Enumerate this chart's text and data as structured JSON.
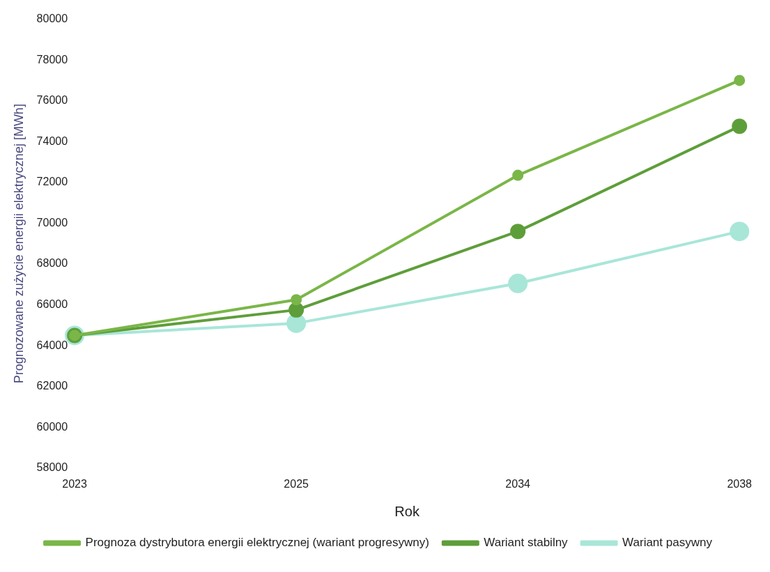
{
  "chart_data": {
    "type": "line",
    "xlabel": "Rok",
    "ylabel": "Prognozowane zużycie energii elektrycznej [MWh]",
    "categories": [
      "2023",
      "2025",
      "2034",
      "2038"
    ],
    "series": [
      {
        "name": "Prognoza dystrybutora energii elektrycznej (wariant progresywny)",
        "color": "#7ab648",
        "values": [
          64500,
          66250,
          72350,
          77000
        ]
      },
      {
        "name": "Wariant stabilny",
        "color": "#5e9e3a",
        "values": [
          64500,
          65750,
          69600,
          74750
        ]
      },
      {
        "name": "Wariant pasywny",
        "color": "#a8e6d8",
        "values": [
          64500,
          65100,
          67050,
          69600
        ]
      }
    ],
    "ylim": [
      58000,
      80000
    ],
    "yticks": [
      58000,
      60000,
      62000,
      64000,
      66000,
      68000,
      70000,
      72000,
      74000,
      76000,
      78000,
      80000
    ],
    "grid": false,
    "legend": "bottom",
    "marker": "circle",
    "line_style": "solid"
  }
}
